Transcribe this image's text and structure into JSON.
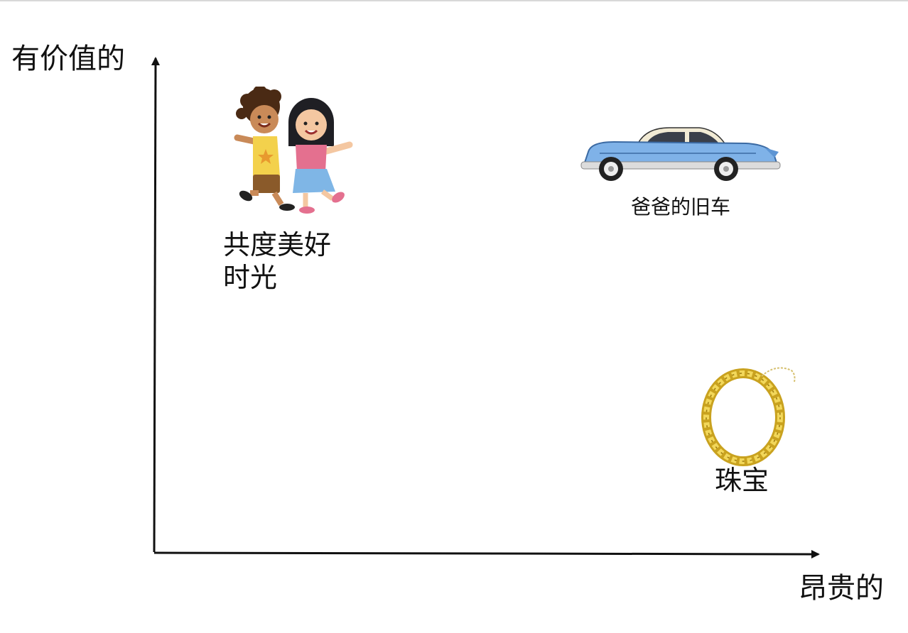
{
  "axes": {
    "y_label": "有价值的",
    "x_label": "昂贵的"
  },
  "items": [
    {
      "id": "kids",
      "label_lines": [
        "共度美好",
        "时光"
      ],
      "icon": "children-icon"
    },
    {
      "id": "car",
      "label": "爸爸的旧车",
      "icon": "vintage-car-icon"
    },
    {
      "id": "jewelry",
      "label": "珠宝",
      "icon": "gold-necklace-icon"
    }
  ],
  "colors": {
    "axis": "#111111",
    "car_body": "#7fb2e8",
    "necklace_gold": "#e3c23a"
  }
}
